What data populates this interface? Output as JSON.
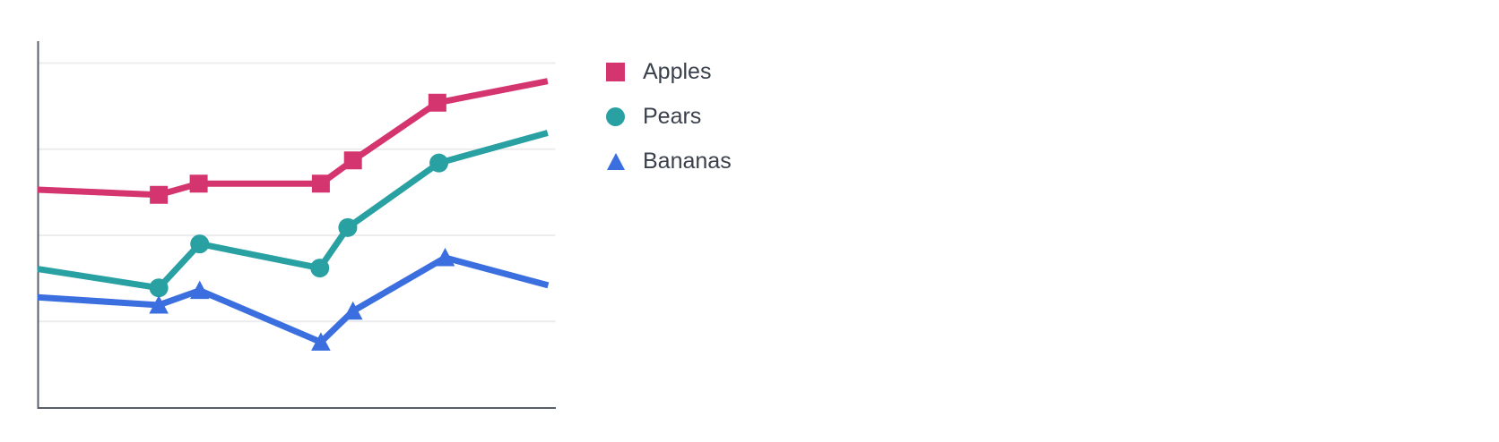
{
  "chart_data": {
    "type": "line",
    "title": "",
    "x_axis": {
      "label": "",
      "tick_labels_visible": false,
      "note": "x given as fraction 0-1 of plot width (no tick labels rendered in chart)"
    },
    "y_axis": {
      "label": "",
      "tick_labels_visible": false,
      "note": "y given in gridline units above the baseline axis (gridlines unlabeled)",
      "ylim": [
        0,
        4.25
      ]
    },
    "grid": {
      "horizontal_lines": 4,
      "color": "#ececee"
    },
    "legend": {
      "position": "right-of-plot",
      "entries": [
        "Apples",
        "Pears",
        "Bananas"
      ]
    },
    "markers_on_endpoints": false,
    "line_width": 7,
    "series": [
      {
        "name": "Apples",
        "color": "#d5356e",
        "marker": "square",
        "points": [
          [
            0.0,
            2.53
          ],
          [
            0.234,
            2.47
          ],
          [
            0.311,
            2.6
          ],
          [
            0.547,
            2.6
          ],
          [
            0.609,
            2.87
          ],
          [
            0.772,
            3.54
          ],
          [
            0.985,
            3.79
          ]
        ]
      },
      {
        "name": "Pears",
        "color": "#29a0a2",
        "marker": "circle",
        "points": [
          [
            0.0,
            1.61
          ],
          [
            0.234,
            1.39
          ],
          [
            0.313,
            1.9
          ],
          [
            0.545,
            1.62
          ],
          [
            0.599,
            2.09
          ],
          [
            0.775,
            2.84
          ],
          [
            0.985,
            3.19
          ]
        ]
      },
      {
        "name": "Bananas",
        "color": "#3b6fe0",
        "marker": "triangle",
        "points": [
          [
            0.0,
            1.28
          ],
          [
            0.234,
            1.19
          ],
          [
            0.313,
            1.36
          ],
          [
            0.547,
            0.76
          ],
          [
            0.609,
            1.12
          ],
          [
            0.787,
            1.74
          ],
          [
            0.986,
            1.42
          ]
        ]
      }
    ]
  },
  "colors": {
    "background": "#ffffff",
    "axis": "#5a606b",
    "grid": "#ececee",
    "legend_text": "#3a414c"
  }
}
